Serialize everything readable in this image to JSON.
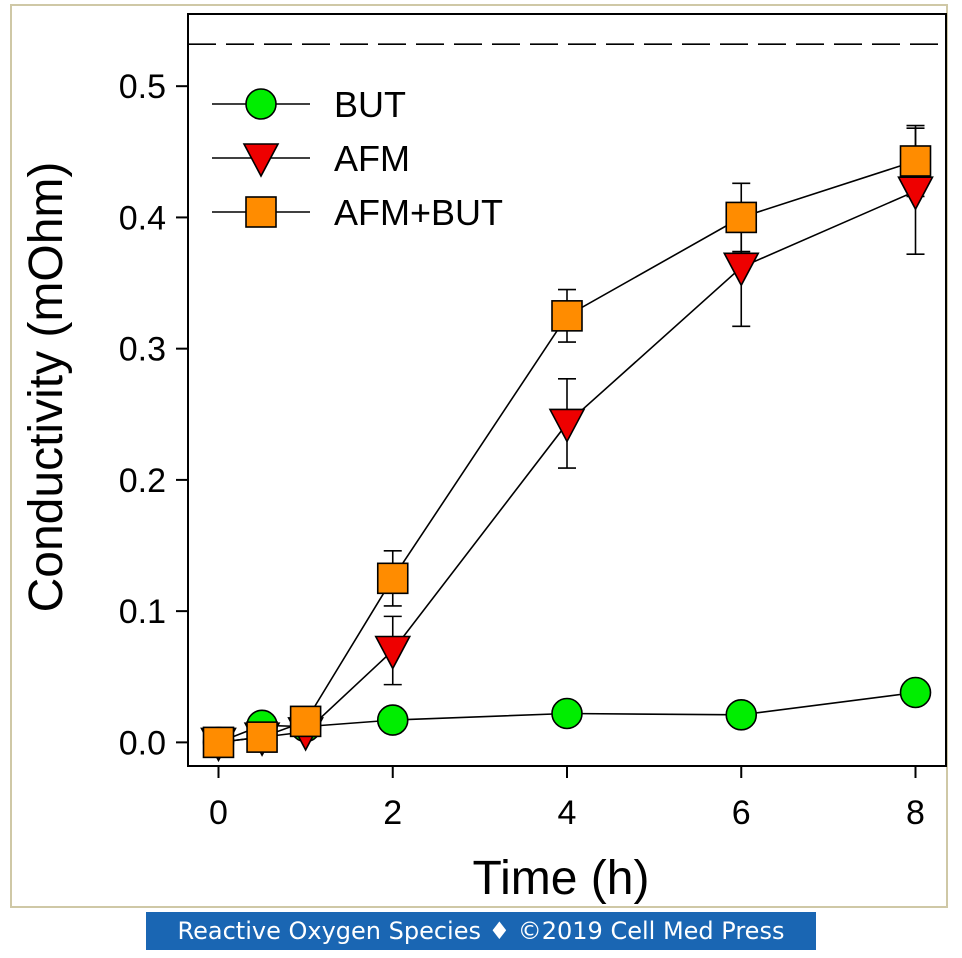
{
  "chart_data": {
    "type": "line",
    "xlabel": "Time (h)",
    "ylabel": "Conductivity (mOhm)",
    "xlim": [
      -0.35,
      8.35
    ],
    "ylim": [
      -0.018,
      0.555
    ],
    "x_ticks": [
      0,
      2,
      4,
      6,
      8
    ],
    "x_tick_labels": [
      "0",
      "2",
      "4",
      "6",
      "8"
    ],
    "y_ticks": [
      0.0,
      0.1,
      0.2,
      0.3,
      0.4,
      0.5
    ],
    "y_tick_labels": [
      "0.0",
      "0.1",
      "0.2",
      "0.3",
      "0.4",
      "0.5"
    ],
    "reference_line": {
      "y": 0.532,
      "style": "dashed"
    },
    "legend_position": "top-left",
    "grid": false,
    "series": [
      {
        "name": "BUT",
        "marker": "circle",
        "color": "#00ee00",
        "x": [
          0,
          0.5,
          1,
          2,
          4,
          6,
          8
        ],
        "y": [
          0.0,
          0.013,
          0.012,
          0.017,
          0.022,
          0.021,
          0.038
        ],
        "err": [
          0,
          0,
          0,
          0,
          0,
          0,
          0
        ]
      },
      {
        "name": "AFM",
        "marker": "triangle-down",
        "color": "#ee0000",
        "x": [
          0,
          0.5,
          1,
          2,
          4,
          6,
          8
        ],
        "y": [
          0.0,
          0.004,
          0.008,
          0.07,
          0.243,
          0.362,
          0.42
        ],
        "err": [
          0,
          0,
          0,
          0.026,
          0.034,
          0.045,
          0.048
        ]
      },
      {
        "name": "AFM+BUT",
        "marker": "square",
        "color": "#ff8c00",
        "x": [
          0,
          0.5,
          1,
          2,
          4,
          6,
          8
        ],
        "y": [
          0.0,
          0.004,
          0.016,
          0.125,
          0.325,
          0.4,
          0.443
        ],
        "err": [
          0,
          0,
          0,
          0.021,
          0.02,
          0.026,
          0.027
        ]
      }
    ]
  },
  "footer": {
    "text": "Reactive Oxygen Species ♦ ©2019 Cell Med Press",
    "background": "#1a66b3"
  }
}
